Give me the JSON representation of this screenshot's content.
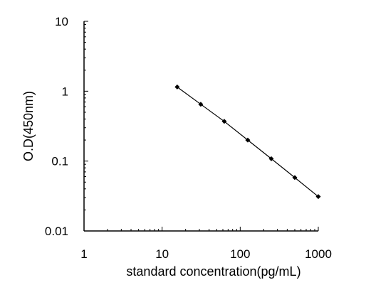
{
  "chart_data": {
    "type": "line",
    "xlabel": "standard concentration(pg/mL)",
    "ylabel": "O.D(450nm)",
    "x_scale": "log",
    "y_scale": "log",
    "xlim": [
      1,
      1000
    ],
    "ylim": [
      0.01,
      10
    ],
    "x_tick_labels": [
      "1",
      "10",
      "100",
      "1000"
    ],
    "y_tick_labels": [
      "10",
      "1",
      "0.1",
      "0.01"
    ],
    "grid": false,
    "series": [
      {
        "x": [
          15.6,
          31.25,
          62.5,
          125,
          250,
          500,
          1000
        ],
        "y": [
          1.15,
          0.65,
          0.37,
          0.2,
          0.108,
          0.058,
          0.031
        ],
        "marker": "diamond",
        "color": "#000000"
      }
    ]
  }
}
